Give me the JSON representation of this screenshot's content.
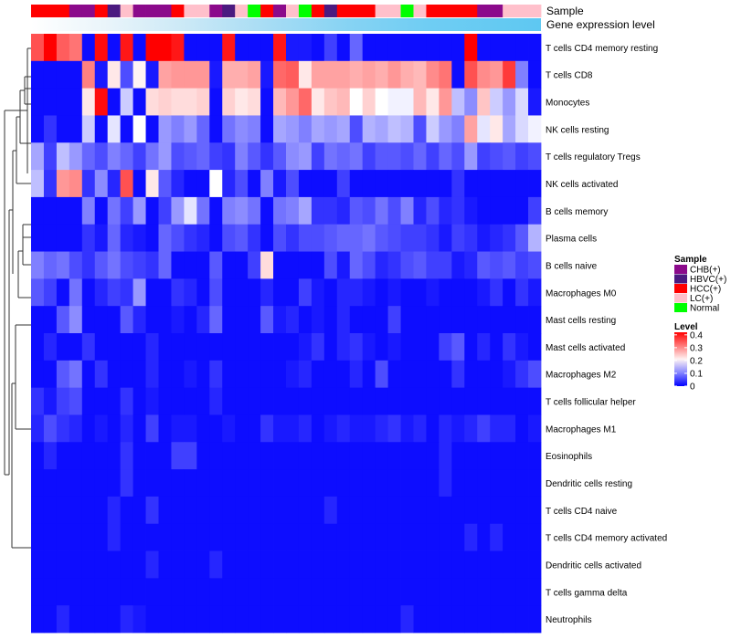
{
  "chart_data": {
    "type": "heatmap",
    "annotation_labels": [
      "Sample",
      "Gene expression level"
    ],
    "samples": [
      "HCC(+)",
      "HCC(+)",
      "HCC(+)",
      "CHB(+)",
      "CHB(+)",
      "HCC(+)",
      "HBVC(+)",
      "LC(+)",
      "CHB(+)",
      "CHB(+)",
      "CHB(+)",
      "HCC(+)",
      "LC(+)",
      "LC(+)",
      "CHB(+)",
      "HBVC(+)",
      "LC(+)",
      "Normal",
      "HCC(+)",
      "CHB(+)",
      "LC(+)",
      "Normal",
      "HCC(+)",
      "HBVC(+)",
      "HCC(+)",
      "HCC(+)",
      "HCC(+)",
      "LC(+)",
      "LC(+)",
      "Normal",
      "LC(+)",
      "HCC(+)",
      "HCC(+)",
      "HCC(+)",
      "HCC(+)",
      "CHB(+)",
      "CHB(+)",
      "LC(+)",
      "LC(+)",
      "LC(+)"
    ],
    "gradient_stops": [
      "#ffffff",
      "#e8f4fa",
      "#c9e8f6",
      "#a6dcf4",
      "#86d3f3",
      "#6fcdf3",
      "#5ec8f2"
    ],
    "gradient_break": 0.78,
    "rows": [
      "T cells CD4 memory resting",
      "T cells CD8",
      "Monocytes",
      "NK cells resting",
      "T cells regulatory  Tregs",
      "NK cells activated",
      "B cells memory",
      "Plasma cells",
      "B cells naive",
      "Macrophages M0",
      "Mast cells resting",
      "Mast cells activated",
      "Macrophages M2",
      "T cells follicular helper",
      "Macrophages M1",
      "Eosinophils",
      "Dendritic cells resting",
      "T cells CD4 naive",
      "T cells CD4 memory activated",
      "Dendritic cells activated",
      "T cells gamma delta",
      "Neutrophils"
    ],
    "values": [
      [
        0.35,
        0.42,
        0.34,
        0.32,
        0.01,
        0.41,
        0.01,
        0.4,
        0.01,
        0.42,
        0.42,
        0.4,
        0.01,
        0.01,
        0.01,
        0.4,
        0.01,
        0.01,
        0.01,
        0.4,
        0.02,
        0.02,
        0.01,
        0.05,
        0.01,
        0.08,
        0.01,
        0.01,
        0.01,
        0.01,
        0.01,
        0.01,
        0.01,
        0.01,
        0.42,
        0.01,
        0.01,
        0.01,
        0.01,
        0.01
      ],
      [
        0.01,
        0.01,
        0.01,
        0.01,
        0.31,
        0.02,
        0.22,
        0.06,
        0.21,
        0.02,
        0.28,
        0.29,
        0.29,
        0.29,
        0.02,
        0.27,
        0.27,
        0.28,
        0.02,
        0.33,
        0.34,
        0.22,
        0.28,
        0.28,
        0.28,
        0.27,
        0.28,
        0.27,
        0.29,
        0.27,
        0.26,
        0.3,
        0.32,
        0.01,
        0.35,
        0.3,
        0.29,
        0.37,
        0.1,
        0.01
      ],
      [
        0.01,
        0.01,
        0.01,
        0.01,
        0.22,
        0.41,
        0.01,
        0.16,
        0.01,
        0.23,
        0.24,
        0.23,
        0.23,
        0.24,
        0.01,
        0.24,
        0.22,
        0.23,
        0.01,
        0.26,
        0.29,
        0.33,
        0.22,
        0.25,
        0.26,
        0.2,
        0.24,
        0.2,
        0.19,
        0.19,
        0.26,
        0.22,
        0.29,
        0.15,
        0.11,
        0.25,
        0.16,
        0.12,
        0.17,
        0.02
      ],
      [
        0.01,
        0.04,
        0.01,
        0.01,
        0.16,
        0.01,
        0.18,
        0.01,
        0.2,
        0.01,
        0.12,
        0.1,
        0.12,
        0.08,
        0.01,
        0.09,
        0.11,
        0.1,
        0.01,
        0.13,
        0.12,
        0.1,
        0.13,
        0.12,
        0.13,
        0.06,
        0.14,
        0.13,
        0.15,
        0.14,
        0.06,
        0.16,
        0.12,
        0.1,
        0.28,
        0.18,
        0.22,
        0.13,
        0.17,
        0.19
      ],
      [
        0.13,
        0.05,
        0.15,
        0.12,
        0.08,
        0.06,
        0.1,
        0.08,
        0.05,
        0.09,
        0.12,
        0.06,
        0.07,
        0.08,
        0.05,
        0.04,
        0.1,
        0.07,
        0.04,
        0.07,
        0.11,
        0.12,
        0.05,
        0.09,
        0.08,
        0.09,
        0.05,
        0.07,
        0.07,
        0.06,
        0.08,
        0.05,
        0.08,
        0.06,
        0.12,
        0.05,
        0.06,
        0.07,
        0.05,
        0.06
      ],
      [
        0.15,
        0.04,
        0.29,
        0.3,
        0.04,
        0.11,
        0.03,
        0.35,
        0.01,
        0.22,
        0.07,
        0.03,
        0.01,
        0.01,
        0.2,
        0.03,
        0.06,
        0.01,
        0.1,
        0.02,
        0.06,
        0.01,
        0.01,
        0.01,
        0.05,
        0.01,
        0.01,
        0.01,
        0.01,
        0.01,
        0.01,
        0.01,
        0.01,
        0.04,
        0.01,
        0.01,
        0.01,
        0.01,
        0.01,
        0.01
      ],
      [
        0.01,
        0.01,
        0.01,
        0.01,
        0.1,
        0.01,
        0.09,
        0.05,
        0.12,
        0.01,
        0.05,
        0.12,
        0.18,
        0.09,
        0.01,
        0.1,
        0.11,
        0.09,
        0.01,
        0.09,
        0.1,
        0.13,
        0.04,
        0.04,
        0.03,
        0.07,
        0.06,
        0.09,
        0.06,
        0.1,
        0.03,
        0.06,
        0.03,
        0.04,
        0.02,
        0.01,
        0.01,
        0.01,
        0.01,
        0.05
      ],
      [
        0.01,
        0.01,
        0.01,
        0.01,
        0.04,
        0.02,
        0.08,
        0.03,
        0.02,
        0.01,
        0.08,
        0.06,
        0.04,
        0.03,
        0.01,
        0.06,
        0.07,
        0.04,
        0.01,
        0.06,
        0.04,
        0.06,
        0.06,
        0.07,
        0.08,
        0.08,
        0.09,
        0.07,
        0.06,
        0.05,
        0.05,
        0.04,
        0.02,
        0.05,
        0.04,
        0.02,
        0.03,
        0.04,
        0.07,
        0.14
      ],
      [
        0.1,
        0.08,
        0.09,
        0.06,
        0.04,
        0.07,
        0.09,
        0.06,
        0.05,
        0.04,
        0.08,
        0.01,
        0.01,
        0.01,
        0.07,
        0.01,
        0.01,
        0.05,
        0.23,
        0.01,
        0.01,
        0.01,
        0.01,
        0.06,
        0.02,
        0.08,
        0.06,
        0.03,
        0.04,
        0.06,
        0.07,
        0.05,
        0.05,
        0.02,
        0.03,
        0.07,
        0.06,
        0.07,
        0.05,
        0.06
      ],
      [
        0.07,
        0.05,
        0.01,
        0.09,
        0.01,
        0.03,
        0.05,
        0.04,
        0.12,
        0.01,
        0.01,
        0.04,
        0.03,
        0.01,
        0.06,
        0.01,
        0.01,
        0.01,
        0.03,
        0.01,
        0.01,
        0.05,
        0.02,
        0.01,
        0.03,
        0.03,
        0.02,
        0.01,
        0.02,
        0.01,
        0.01,
        0.02,
        0.01,
        0.01,
        0.01,
        0.02,
        0.04,
        0.01,
        0.04,
        0.02
      ],
      [
        0.01,
        0.01,
        0.07,
        0.11,
        0.01,
        0.01,
        0.01,
        0.07,
        0.03,
        0.01,
        0.01,
        0.02,
        0.01,
        0.03,
        0.08,
        0.01,
        0.01,
        0.01,
        0.07,
        0.02,
        0.03,
        0.01,
        0.02,
        0.01,
        0.03,
        0.01,
        0.01,
        0.01,
        0.05,
        0.01,
        0.01,
        0.01,
        0.01,
        0.01,
        0.01,
        0.01,
        0.01,
        0.01,
        0.01,
        0.01
      ],
      [
        0.01,
        0.03,
        0.01,
        0.01,
        0.04,
        0.01,
        0.01,
        0.01,
        0.01,
        0.03,
        0.01,
        0.01,
        0.01,
        0.01,
        0.01,
        0.01,
        0.01,
        0.01,
        0.01,
        0.01,
        0.01,
        0.02,
        0.04,
        0.01,
        0.03,
        0.04,
        0.02,
        0.01,
        0.02,
        0.01,
        0.01,
        0.01,
        0.05,
        0.07,
        0.01,
        0.03,
        0.01,
        0.04,
        0.02,
        0.01
      ],
      [
        0.01,
        0.01,
        0.07,
        0.09,
        0.01,
        0.04,
        0.01,
        0.01,
        0.01,
        0.03,
        0.01,
        0.01,
        0.02,
        0.01,
        0.04,
        0.01,
        0.01,
        0.01,
        0.01,
        0.01,
        0.02,
        0.03,
        0.01,
        0.01,
        0.01,
        0.03,
        0.01,
        0.06,
        0.01,
        0.01,
        0.01,
        0.01,
        0.01,
        0.04,
        0.01,
        0.01,
        0.01,
        0.02,
        0.04,
        0.06
      ],
      [
        0.04,
        0.02,
        0.05,
        0.06,
        0.01,
        0.01,
        0.01,
        0.04,
        0.01,
        0.02,
        0.01,
        0.01,
        0.01,
        0.01,
        0.03,
        0.01,
        0.01,
        0.01,
        0.01,
        0.01,
        0.01,
        0.01,
        0.01,
        0.01,
        0.01,
        0.01,
        0.01,
        0.01,
        0.01,
        0.01,
        0.01,
        0.01,
        0.01,
        0.01,
        0.01,
        0.01,
        0.01,
        0.01,
        0.01,
        0.01
      ],
      [
        0.03,
        0.06,
        0.04,
        0.03,
        0.01,
        0.02,
        0.01,
        0.03,
        0.01,
        0.05,
        0.01,
        0.02,
        0.02,
        0.01,
        0.01,
        0.02,
        0.01,
        0.01,
        0.04,
        0.02,
        0.02,
        0.03,
        0.01,
        0.02,
        0.03,
        0.02,
        0.02,
        0.03,
        0.04,
        0.02,
        0.03,
        0.01,
        0.03,
        0.02,
        0.03,
        0.05,
        0.03,
        0.03,
        0.01,
        0.02
      ],
      [
        0.01,
        0.03,
        0.01,
        0.01,
        0.01,
        0.01,
        0.01,
        0.04,
        0.01,
        0.01,
        0.01,
        0.05,
        0.05,
        0.01,
        0.01,
        0.01,
        0.01,
        0.01,
        0.01,
        0.01,
        0.01,
        0.01,
        0.01,
        0.01,
        0.01,
        0.01,
        0.01,
        0.01,
        0.01,
        0.01,
        0.01,
        0.01,
        0.03,
        0.01,
        0.01,
        0.01,
        0.01,
        0.01,
        0.01,
        0.01
      ],
      [
        0.01,
        0.01,
        0.01,
        0.01,
        0.01,
        0.01,
        0.01,
        0.04,
        0.01,
        0.01,
        0.01,
        0.01,
        0.01,
        0.01,
        0.01,
        0.01,
        0.01,
        0.01,
        0.01,
        0.01,
        0.01,
        0.01,
        0.01,
        0.01,
        0.01,
        0.01,
        0.01,
        0.01,
        0.01,
        0.01,
        0.01,
        0.01,
        0.03,
        0.01,
        0.01,
        0.01,
        0.01,
        0.01,
        0.01,
        0.01
      ],
      [
        0.01,
        0.01,
        0.01,
        0.01,
        0.01,
        0.01,
        0.03,
        0.01,
        0.01,
        0.04,
        0.01,
        0.01,
        0.01,
        0.01,
        0.01,
        0.01,
        0.01,
        0.01,
        0.01,
        0.01,
        0.01,
        0.01,
        0.01,
        0.03,
        0.01,
        0.01,
        0.01,
        0.01,
        0.01,
        0.01,
        0.01,
        0.01,
        0.01,
        0.01,
        0.01,
        0.01,
        0.01,
        0.01,
        0.01,
        0.01
      ],
      [
        0.01,
        0.01,
        0.01,
        0.01,
        0.01,
        0.01,
        0.03,
        0.01,
        0.01,
        0.01,
        0.01,
        0.01,
        0.01,
        0.01,
        0.01,
        0.01,
        0.01,
        0.01,
        0.01,
        0.01,
        0.01,
        0.01,
        0.01,
        0.01,
        0.01,
        0.01,
        0.01,
        0.01,
        0.01,
        0.01,
        0.01,
        0.01,
        0.01,
        0.01,
        0.03,
        0.01,
        0.03,
        0.01,
        0.01,
        0.01
      ],
      [
        0.01,
        0.01,
        0.01,
        0.01,
        0.01,
        0.01,
        0.01,
        0.01,
        0.01,
        0.03,
        0.01,
        0.01,
        0.01,
        0.01,
        0.03,
        0.01,
        0.01,
        0.01,
        0.01,
        0.01,
        0.01,
        0.01,
        0.01,
        0.01,
        0.01,
        0.01,
        0.01,
        0.01,
        0.01,
        0.01,
        0.01,
        0.01,
        0.01,
        0.01,
        0.01,
        0.01,
        0.01,
        0.01,
        0.01,
        0.01
      ],
      [
        0.01,
        0.01,
        0.01,
        0.01,
        0.01,
        0.01,
        0.01,
        0.01,
        0.01,
        0.01,
        0.01,
        0.01,
        0.01,
        0.01,
        0.01,
        0.01,
        0.01,
        0.01,
        0.01,
        0.01,
        0.01,
        0.01,
        0.01,
        0.01,
        0.01,
        0.01,
        0.01,
        0.01,
        0.01,
        0.01,
        0.01,
        0.01,
        0.01,
        0.01,
        0.01,
        0.01,
        0.01,
        0.01,
        0.01,
        0.01
      ],
      [
        0.01,
        0.01,
        0.03,
        0.01,
        0.01,
        0.01,
        0.01,
        0.03,
        0.02,
        0.01,
        0.01,
        0.01,
        0.01,
        0.01,
        0.01,
        0.01,
        0.01,
        0.01,
        0.01,
        0.01,
        0.01,
        0.01,
        0.01,
        0.01,
        0.01,
        0.01,
        0.01,
        0.01,
        0.01,
        0.03,
        0.01,
        0.01,
        0.01,
        0.01,
        0.01,
        0.01,
        0.01,
        0.01,
        0.01,
        0.01
      ]
    ],
    "legend_sample": {
      "title": "Sample",
      "items": [
        {
          "label": "CHB(+)",
          "color": "#8b0a8b"
        },
        {
          "label": "HBVC(+)",
          "color": "#4b1a80"
        },
        {
          "label": "HCC(+)",
          "color": "#ff0000"
        },
        {
          "label": "LC(+)",
          "color": "#ffc0cb"
        },
        {
          "label": "Normal",
          "color": "#00ff00"
        }
      ]
    },
    "legend_level": {
      "title": "Level",
      "ticks": [
        "0.4",
        "0.3",
        "0.2",
        "0.1",
        "0"
      ],
      "tick_values": [
        0.4,
        0.3,
        0.2,
        0.1,
        0.0
      ],
      "range": [
        0,
        0.42
      ]
    },
    "colorscale": {
      "low": "#0000ff",
      "mid": "#ffffff",
      "high": "#ff0000",
      "midpoint": 0.2
    }
  }
}
